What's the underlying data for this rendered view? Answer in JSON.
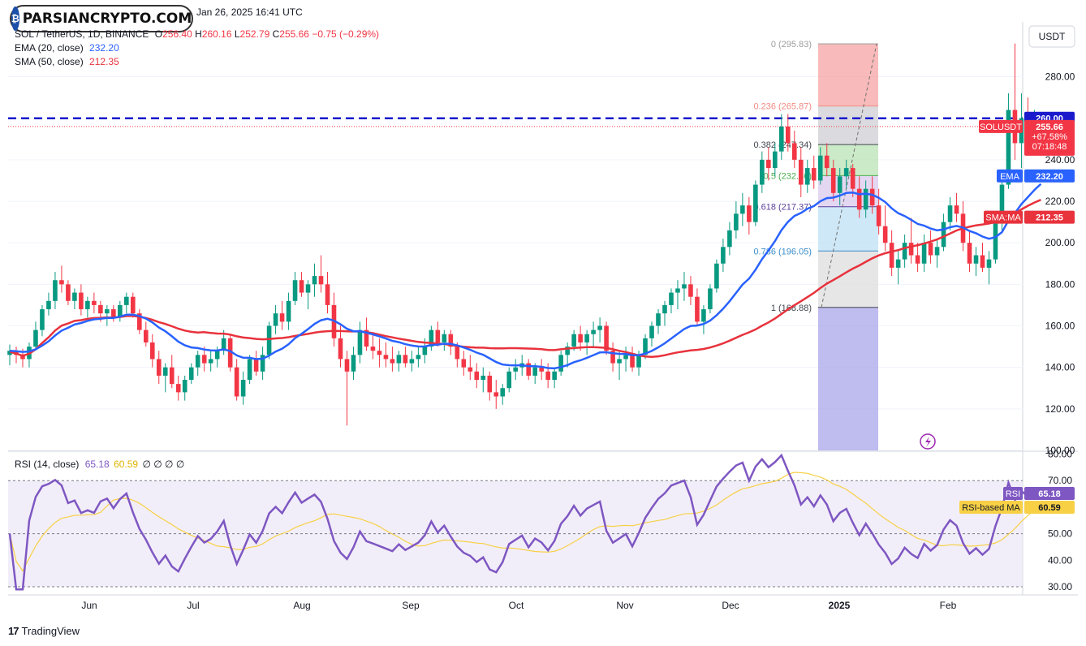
{
  "header": {
    "date_line": "Jan 26, 2025 16:41 UTC",
    "symbol": "SOL / TetherUS, 1D, BINANCE",
    "open_label": "O",
    "open": "256.40",
    "high_label": "H",
    "high": "260.16",
    "low_label": "L",
    "low": "252.79",
    "close_label": "C",
    "close": "255.66",
    "change": "−0.75 (−0.29%)",
    "ema_label": "EMA (20, close)",
    "ema_value": "232.20",
    "sma_label": "SMA (50, close)",
    "sma_value": "212.35"
  },
  "watermark": {
    "text": "PARSIANCRYPTO.COM"
  },
  "rsi_header": {
    "label": "RSI (14, close)",
    "rsi_value": "65.18",
    "ma_value": "60.59",
    "extra": "∅ ∅ ∅ ∅"
  },
  "price_tags": {
    "level": "260.00",
    "symbol": "SOLUSDT",
    "price": "255.66",
    "pct": "+67.58%",
    "countdown": "07:18:48",
    "ema_name": "EMA",
    "ema": "232.20",
    "sma_name": "SMA:MA",
    "sma": "212.35",
    "rsi_name": "RSI",
    "rsi": "65.18",
    "rsi_ma_name": "RSI-based MA",
    "rsi_ma": "60.59"
  },
  "currency_button": "USDT",
  "branding": {
    "logo": "17",
    "text": "TradingView"
  },
  "colors": {
    "up": "#089981",
    "down": "#f23645",
    "ema": "#2962ff",
    "sma": "#e8323c",
    "rsi": "#7e57c2",
    "rsi_ma": "#f7d046",
    "level": "#1a1acc"
  },
  "chart_data": [
    {
      "type": "candlestick",
      "title": "SOL / TetherUS, 1D, BINANCE",
      "x_ticks": [
        "Jun",
        "Jul",
        "Aug",
        "Sep",
        "Oct",
        "Nov",
        "Dec",
        "2025",
        "Feb"
      ],
      "y_ticks": [
        "100.00",
        "120.00",
        "140.00",
        "160.00",
        "180.00",
        "200.00",
        "220.00",
        "240.00",
        "260.00",
        "280.00"
      ],
      "ylim": [
        100,
        297
      ],
      "horizontal_level": 260.0,
      "candles": [
        [
          146,
          151,
          141,
          148
        ],
        [
          148,
          150,
          142,
          146
        ],
        [
          146,
          149,
          140,
          144
        ],
        [
          144,
          152,
          140,
          150
        ],
        [
          150,
          162,
          148,
          158
        ],
        [
          158,
          170,
          155,
          168
        ],
        [
          168,
          176,
          165,
          172
        ],
        [
          172,
          186,
          168,
          182
        ],
        [
          182,
          189,
          176,
          180
        ],
        [
          180,
          182,
          170,
          172
        ],
        [
          172,
          178,
          168,
          176
        ],
        [
          176,
          180,
          165,
          168
        ],
        [
          168,
          174,
          164,
          172
        ],
        [
          172,
          176,
          166,
          170
        ],
        [
          170,
          172,
          162,
          166
        ],
        [
          166,
          170,
          160,
          168
        ],
        [
          168,
          170,
          162,
          164
        ],
        [
          164,
          172,
          162,
          170
        ],
        [
          170,
          176,
          166,
          174
        ],
        [
          174,
          176,
          164,
          166
        ],
        [
          166,
          168,
          156,
          158
        ],
        [
          158,
          162,
          150,
          152
        ],
        [
          152,
          156,
          140,
          144
        ],
        [
          144,
          148,
          132,
          136
        ],
        [
          136,
          142,
          128,
          140
        ],
        [
          140,
          146,
          130,
          132
        ],
        [
          132,
          136,
          124,
          128
        ],
        [
          128,
          136,
          124,
          134
        ],
        [
          134,
          142,
          132,
          140
        ],
        [
          140,
          148,
          136,
          146
        ],
        [
          146,
          150,
          138,
          142
        ],
        [
          142,
          148,
          138,
          144
        ],
        [
          144,
          150,
          140,
          148
        ],
        [
          148,
          158,
          146,
          154
        ],
        [
          154,
          156,
          138,
          140
        ],
        [
          140,
          144,
          124,
          126
        ],
        [
          126,
          138,
          122,
          134
        ],
        [
          134,
          146,
          132,
          144
        ],
        [
          144,
          148,
          136,
          138
        ],
        [
          138,
          150,
          134,
          146
        ],
        [
          146,
          162,
          144,
          160
        ],
        [
          160,
          170,
          156,
          166
        ],
        [
          166,
          172,
          158,
          162
        ],
        [
          162,
          176,
          158,
          172
        ],
        [
          172,
          186,
          170,
          182
        ],
        [
          182,
          186,
          174,
          176
        ],
        [
          176,
          182,
          168,
          180
        ],
        [
          180,
          190,
          174,
          184
        ],
        [
          184,
          194,
          176,
          180
        ],
        [
          180,
          186,
          166,
          170
        ],
        [
          170,
          176,
          150,
          154
        ],
        [
          154,
          160,
          140,
          144
        ],
        [
          144,
          148,
          112,
          138
        ],
        [
          138,
          150,
          134,
          146
        ],
        [
          146,
          162,
          142,
          158
        ],
        [
          158,
          164,
          148,
          150
        ],
        [
          150,
          156,
          144,
          148
        ],
        [
          148,
          154,
          140,
          146
        ],
        [
          146,
          152,
          140,
          144
        ],
        [
          144,
          150,
          138,
          142
        ],
        [
          142,
          148,
          138,
          146
        ],
        [
          146,
          150,
          140,
          142
        ],
        [
          142,
          148,
          138,
          144
        ],
        [
          144,
          150,
          140,
          146
        ],
        [
          146,
          154,
          142,
          150
        ],
        [
          150,
          160,
          148,
          158
        ],
        [
          158,
          162,
          150,
          152
        ],
        [
          152,
          158,
          148,
          156
        ],
        [
          156,
          158,
          146,
          150
        ],
        [
          150,
          152,
          140,
          144
        ],
        [
          144,
          148,
          136,
          140
        ],
        [
          140,
          146,
          134,
          138
        ],
        [
          138,
          142,
          130,
          134
        ],
        [
          134,
          140,
          128,
          136
        ],
        [
          136,
          138,
          124,
          128
        ],
        [
          128,
          134,
          120,
          126
        ],
        [
          126,
          132,
          122,
          130
        ],
        [
          130,
          140,
          128,
          138
        ],
        [
          138,
          144,
          134,
          140
        ],
        [
          140,
          146,
          136,
          142
        ],
        [
          142,
          144,
          134,
          136
        ],
        [
          136,
          142,
          132,
          140
        ],
        [
          140,
          144,
          134,
          138
        ],
        [
          138,
          142,
          130,
          134
        ],
        [
          134,
          140,
          130,
          138
        ],
        [
          138,
          148,
          136,
          146
        ],
        [
          146,
          152,
          140,
          150
        ],
        [
          150,
          158,
          148,
          156
        ],
        [
          156,
          160,
          148,
          152
        ],
        [
          152,
          158,
          146,
          156
        ],
        [
          156,
          162,
          150,
          158
        ],
        [
          158,
          164,
          152,
          160
        ],
        [
          160,
          162,
          146,
          148
        ],
        [
          148,
          152,
          138,
          142
        ],
        [
          142,
          148,
          134,
          144
        ],
        [
          144,
          150,
          138,
          146
        ],
        [
          146,
          150,
          138,
          140
        ],
        [
          140,
          148,
          136,
          146
        ],
        [
          146,
          156,
          144,
          154
        ],
        [
          154,
          162,
          150,
          160
        ],
        [
          160,
          168,
          156,
          166
        ],
        [
          166,
          172,
          160,
          170
        ],
        [
          170,
          178,
          166,
          176
        ],
        [
          176,
          182,
          168,
          178
        ],
        [
          178,
          186,
          172,
          180
        ],
        [
          180,
          184,
          170,
          174
        ],
        [
          174,
          178,
          160,
          162
        ],
        [
          162,
          170,
          156,
          168
        ],
        [
          168,
          180,
          166,
          178
        ],
        [
          178,
          192,
          176,
          190
        ],
        [
          190,
          202,
          186,
          198
        ],
        [
          198,
          210,
          194,
          206
        ],
        [
          206,
          220,
          202,
          214
        ],
        [
          214,
          224,
          208,
          218
        ],
        [
          218,
          222,
          204,
          210
        ],
        [
          210,
          230,
          208,
          228
        ],
        [
          228,
          244,
          224,
          240
        ],
        [
          240,
          246,
          230,
          236
        ],
        [
          236,
          248,
          232,
          244
        ],
        [
          244,
          262,
          240,
          256
        ],
        [
          256,
          262,
          244,
          248
        ],
        [
          248,
          254,
          236,
          240
        ],
        [
          240,
          246,
          222,
          228
        ],
        [
          228,
          240,
          224,
          236
        ],
        [
          236,
          242,
          226,
          230
        ],
        [
          230,
          246,
          228,
          242
        ],
        [
          242,
          248,
          232,
          236
        ],
        [
          236,
          240,
          220,
          224
        ],
        [
          224,
          236,
          218,
          232
        ],
        [
          232,
          240,
          226,
          236
        ],
        [
          236,
          238,
          222,
          226
        ],
        [
          226,
          232,
          212,
          216
        ],
        [
          216,
          230,
          212,
          226
        ],
        [
          226,
          232,
          214,
          218
        ],
        [
          218,
          226,
          204,
          208
        ],
        [
          208,
          218,
          196,
          200
        ],
        [
          200,
          206,
          184,
          188
        ],
        [
          188,
          196,
          180,
          192
        ],
        [
          192,
          204,
          188,
          200
        ],
        [
          200,
          212,
          190,
          194
        ],
        [
          194,
          200,
          186,
          190
        ],
        [
          190,
          204,
          186,
          200
        ],
        [
          200,
          206,
          190,
          194
        ],
        [
          194,
          202,
          188,
          198
        ],
        [
          198,
          214,
          196,
          210
        ],
        [
          210,
          222,
          206,
          218
        ],
        [
          218,
          224,
          210,
          214
        ],
        [
          214,
          220,
          196,
          200
        ],
        [
          200,
          206,
          186,
          190
        ],
        [
          190,
          198,
          184,
          194
        ],
        [
          194,
          200,
          186,
          188
        ],
        [
          188,
          196,
          180,
          192
        ],
        [
          192,
          212,
          190,
          210
        ],
        [
          210,
          232,
          206,
          228
        ],
        [
          228,
          272,
          226,
          264
        ],
        [
          264,
          296,
          240,
          248
        ],
        [
          248,
          272,
          236,
          260
        ],
        [
          260,
          270,
          248,
          254
        ],
        [
          254,
          264,
          244,
          258
        ],
        [
          258,
          262,
          250,
          256
        ]
      ],
      "ema": {
        "name": "EMA (20, close)",
        "last": 232.2
      },
      "sma": {
        "name": "SMA (50, close)",
        "last": 212.35
      },
      "fibonacci": [
        {
          "label": "0 (295.83)",
          "value": 295.83
        },
        {
          "label": "0.236 (265.87)",
          "value": 265.87
        },
        {
          "label": "0.382 (247.34)",
          "value": 247.34
        },
        {
          "label": "0.5 (232.36)",
          "value": 232.36
        },
        {
          "label": "0.618 (217.37)",
          "value": 217.37
        },
        {
          "label": "0.786 (196.05)",
          "value": 196.05
        },
        {
          "label": "1 (168.88)",
          "value": 168.88
        }
      ]
    },
    {
      "type": "line",
      "title": "RSI (14, close)",
      "y_ticks": [
        "30.00",
        "40.00",
        "50.00",
        "60.00",
        "70.00",
        "80.00"
      ],
      "ylim": [
        28,
        81
      ],
      "levels": [
        70,
        50,
        30
      ],
      "series": [
        {
          "name": "RSI",
          "last": 65.18
        },
        {
          "name": "RSI-based MA",
          "last": 60.59
        }
      ]
    }
  ]
}
